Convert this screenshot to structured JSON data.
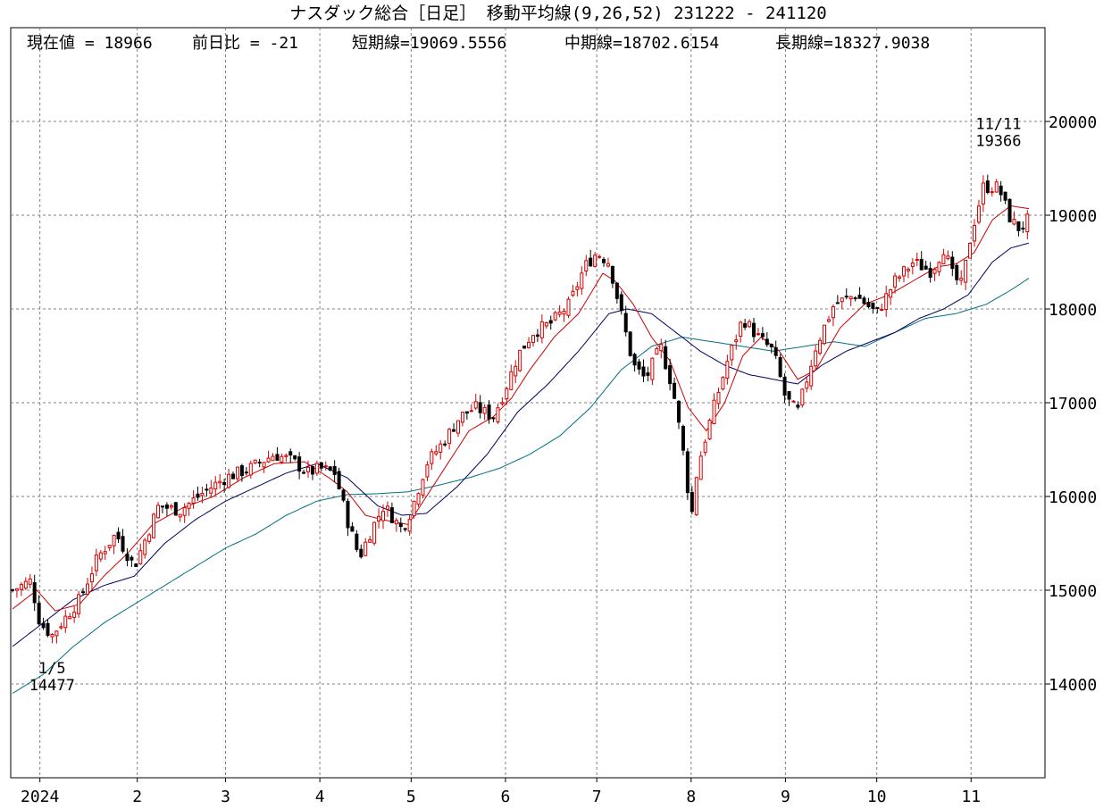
{
  "chart_data": {
    "type": "candlestick",
    "title": "ナスダック総合［日足］ 移動平均線(9,26,52) 231222 - 241120",
    "info": {
      "current": "現在値 = 18966",
      "change": "前日比 = -21",
      "short_ma": "短期線=19069.5556",
      "mid_ma": "中期線=18702.6154",
      "long_ma": "長期線=18327.9038"
    },
    "ylim": [
      13000,
      21000
    ],
    "yticks": [
      14000,
      15000,
      16000,
      17000,
      18000,
      19000,
      20000
    ],
    "x_labels": [
      {
        "label": "2024",
        "day": 9
      },
      {
        "label": "2",
        "day": 41
      },
      {
        "label": "3",
        "day": 70
      },
      {
        "label": "4",
        "day": 101
      },
      {
        "label": "5",
        "day": 131
      },
      {
        "label": "6",
        "day": 162
      },
      {
        "label": "7",
        "day": 192
      },
      {
        "label": "8",
        "day": 223
      },
      {
        "label": "9",
        "day": 254
      },
      {
        "label": "10",
        "day": 284
      },
      {
        "label": "11",
        "day": 315
      }
    ],
    "total_days": 334,
    "annotations": [
      {
        "date_label": "1/5",
        "value_label": "14477",
        "day": 13,
        "value": 14477,
        "position": "below"
      },
      {
        "date_label": "11/11",
        "value_label": "19366",
        "day": 324,
        "value": 19366,
        "position": "above"
      }
    ],
    "price_path": [
      [
        0,
        15000
      ],
      [
        6,
        15100
      ],
      [
        9,
        14650
      ],
      [
        13,
        14520
      ],
      [
        16,
        14650
      ],
      [
        22,
        14900
      ],
      [
        28,
        15350
      ],
      [
        34,
        15600
      ],
      [
        40,
        15250
      ],
      [
        48,
        15900
      ],
      [
        55,
        15850
      ],
      [
        63,
        16050
      ],
      [
        70,
        16200
      ],
      [
        78,
        16300
      ],
      [
        86,
        16450
      ],
      [
        92,
        16380
      ],
      [
        97,
        16250
      ],
      [
        101,
        16300
      ],
      [
        106,
        16250
      ],
      [
        110,
        15750
      ],
      [
        114,
        15350
      ],
      [
        118,
        15650
      ],
      [
        122,
        15900
      ],
      [
        128,
        15650
      ],
      [
        131,
        15850
      ],
      [
        136,
        16350
      ],
      [
        142,
        16600
      ],
      [
        147,
        16850
      ],
      [
        152,
        16950
      ],
      [
        158,
        16850
      ],
      [
        162,
        17150
      ],
      [
        166,
        17500
      ],
      [
        171,
        17750
      ],
      [
        177,
        17850
      ],
      [
        183,
        18050
      ],
      [
        188,
        18450
      ],
      [
        192,
        18600
      ],
      [
        196,
        18500
      ],
      [
        200,
        17950
      ],
      [
        204,
        17400
      ],
      [
        208,
        17250
      ],
      [
        213,
        17600
      ],
      [
        217,
        17150
      ],
      [
        221,
        16350
      ],
      [
        223,
        15750
      ],
      [
        225,
        16300
      ],
      [
        230,
        16900
      ],
      [
        235,
        17450
      ],
      [
        240,
        17900
      ],
      [
        245,
        17700
      ],
      [
        250,
        17550
      ],
      [
        254,
        17050
      ],
      [
        258,
        16900
      ],
      [
        264,
        17600
      ],
      [
        270,
        18050
      ],
      [
        277,
        18150
      ],
      [
        284,
        17950
      ],
      [
        290,
        18300
      ],
      [
        296,
        18500
      ],
      [
        302,
        18400
      ],
      [
        306,
        18650
      ],
      [
        309,
        18350
      ],
      [
        312,
        18250
      ],
      [
        315,
        18800
      ],
      [
        319,
        19300
      ],
      [
        324,
        19300
      ],
      [
        328,
        18950
      ],
      [
        331,
        18850
      ],
      [
        334,
        18966
      ]
    ],
    "ma_short": [
      [
        0,
        14800
      ],
      [
        8,
        15000
      ],
      [
        14,
        14780
      ],
      [
        22,
        14850
      ],
      [
        30,
        15150
      ],
      [
        38,
        15400
      ],
      [
        46,
        15700
      ],
      [
        56,
        15880
      ],
      [
        66,
        16000
      ],
      [
        76,
        16200
      ],
      [
        86,
        16350
      ],
      [
        96,
        16370
      ],
      [
        104,
        16200
      ],
      [
        110,
        16050
      ],
      [
        116,
        15800
      ],
      [
        122,
        15750
      ],
      [
        130,
        15700
      ],
      [
        136,
        16000
      ],
      [
        142,
        16300
      ],
      [
        150,
        16700
      ],
      [
        158,
        16850
      ],
      [
        164,
        17050
      ],
      [
        170,
        17350
      ],
      [
        178,
        17700
      ],
      [
        186,
        17950
      ],
      [
        194,
        18380
      ],
      [
        198,
        18300
      ],
      [
        204,
        18050
      ],
      [
        210,
        17700
      ],
      [
        216,
        17450
      ],
      [
        222,
        16950
      ],
      [
        228,
        16700
      ],
      [
        234,
        17000
      ],
      [
        240,
        17500
      ],
      [
        246,
        17700
      ],
      [
        252,
        17550
      ],
      [
        258,
        17250
      ],
      [
        264,
        17350
      ],
      [
        272,
        17800
      ],
      [
        280,
        18050
      ],
      [
        288,
        18150
      ],
      [
        296,
        18300
      ],
      [
        304,
        18450
      ],
      [
        310,
        18480
      ],
      [
        316,
        18600
      ],
      [
        322,
        18950
      ],
      [
        328,
        19100
      ],
      [
        334,
        19070
      ]
    ],
    "ma_mid": [
      [
        0,
        14400
      ],
      [
        10,
        14650
      ],
      [
        20,
        14900
      ],
      [
        30,
        15050
      ],
      [
        40,
        15150
      ],
      [
        50,
        15500
      ],
      [
        60,
        15750
      ],
      [
        70,
        15950
      ],
      [
        80,
        16100
      ],
      [
        90,
        16250
      ],
      [
        100,
        16350
      ],
      [
        110,
        16200
      ],
      [
        120,
        15900
      ],
      [
        128,
        15800
      ],
      [
        136,
        15820
      ],
      [
        146,
        16100
      ],
      [
        156,
        16450
      ],
      [
        166,
        16900
      ],
      [
        176,
        17200
      ],
      [
        186,
        17550
      ],
      [
        196,
        17950
      ],
      [
        202,
        18000
      ],
      [
        210,
        17950
      ],
      [
        218,
        17750
      ],
      [
        226,
        17550
      ],
      [
        234,
        17400
      ],
      [
        242,
        17300
      ],
      [
        250,
        17250
      ],
      [
        258,
        17200
      ],
      [
        266,
        17400
      ],
      [
        274,
        17550
      ],
      [
        282,
        17650
      ],
      [
        290,
        17750
      ],
      [
        298,
        17900
      ],
      [
        306,
        18000
      ],
      [
        314,
        18150
      ],
      [
        322,
        18500
      ],
      [
        328,
        18650
      ],
      [
        334,
        18703
      ]
    ],
    "ma_long": [
      [
        0,
        13900
      ],
      [
        10,
        14100
      ],
      [
        20,
        14400
      ],
      [
        30,
        14650
      ],
      [
        40,
        14850
      ],
      [
        50,
        15050
      ],
      [
        60,
        15250
      ],
      [
        70,
        15450
      ],
      [
        80,
        15600
      ],
      [
        90,
        15800
      ],
      [
        100,
        15950
      ],
      [
        110,
        16020
      ],
      [
        120,
        16030
      ],
      [
        130,
        16050
      ],
      [
        140,
        16120
      ],
      [
        150,
        16200
      ],
      [
        160,
        16300
      ],
      [
        170,
        16450
      ],
      [
        180,
        16650
      ],
      [
        190,
        16950
      ],
      [
        200,
        17350
      ],
      [
        210,
        17600
      ],
      [
        220,
        17700
      ],
      [
        230,
        17650
      ],
      [
        240,
        17600
      ],
      [
        250,
        17550
      ],
      [
        260,
        17600
      ],
      [
        270,
        17650
      ],
      [
        280,
        17600
      ],
      [
        290,
        17750
      ],
      [
        300,
        17900
      ],
      [
        310,
        17950
      ],
      [
        320,
        18050
      ],
      [
        328,
        18200
      ],
      [
        334,
        18328
      ]
    ],
    "colors": {
      "background": "#ffffff",
      "up_candle": "#d40000",
      "down_candle": "#000000",
      "short_ma": "#cc0000",
      "mid_ma": "#000060",
      "long_ma": "#007080",
      "grid": "#808080"
    }
  }
}
